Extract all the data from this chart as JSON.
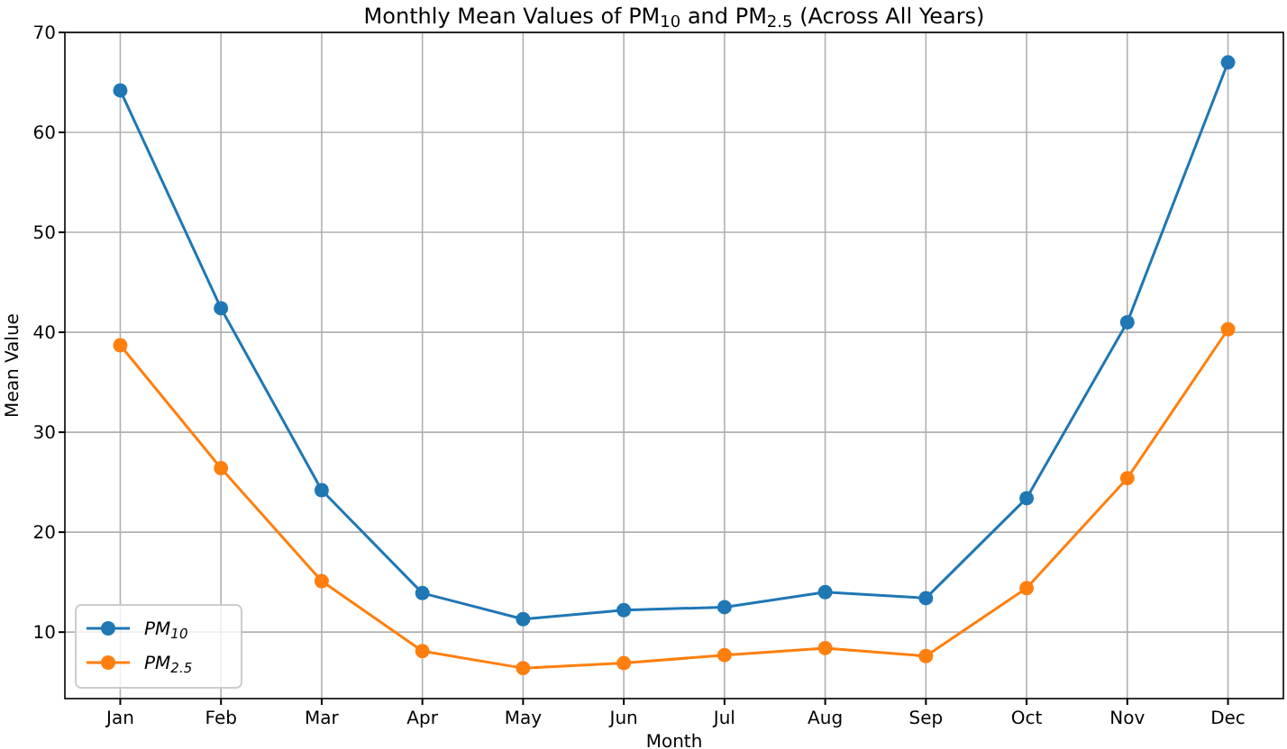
{
  "chart_data": {
    "type": "line",
    "title": "Monthly Mean Values of PM$_{10}$ and PM$_{2.5}$ (Across All Years)",
    "xlabel": "Month",
    "ylabel": "Mean Value",
    "categories": [
      "Jan",
      "Feb",
      "Mar",
      "Apr",
      "May",
      "Jun",
      "Jul",
      "Aug",
      "Sep",
      "Oct",
      "Nov",
      "Dec"
    ],
    "series": [
      {
        "name": "PM$_{10}$",
        "color": "#1f77b4",
        "values": [
          64.2,
          42.4,
          24.2,
          13.9,
          11.3,
          12.2,
          12.5,
          14.0,
          13.4,
          23.4,
          41.0,
          67.0
        ]
      },
      {
        "name": "PM$_{2.5}$",
        "color": "#ff7f0e",
        "values": [
          38.7,
          26.4,
          15.1,
          8.1,
          6.4,
          6.9,
          7.7,
          8.4,
          7.6,
          14.4,
          25.4,
          40.3
        ]
      }
    ],
    "ylim": [
      3.35,
      70
    ],
    "yticks": [
      10,
      20,
      30,
      40,
      50,
      60,
      70
    ],
    "grid": true,
    "legend": "bottom left",
    "marker": "circle",
    "line_style": "solid"
  }
}
